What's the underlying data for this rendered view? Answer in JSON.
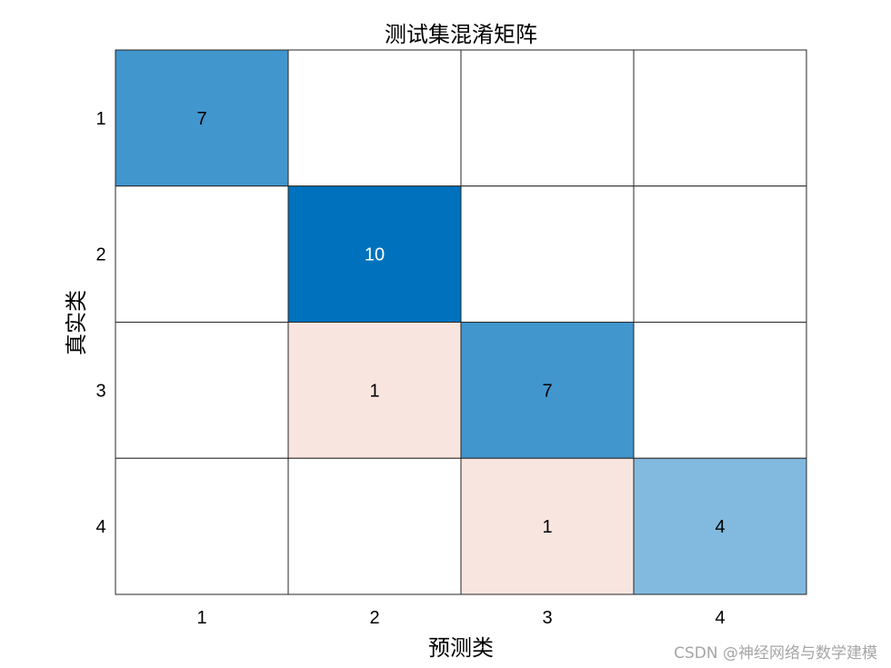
{
  "chart_data": {
    "type": "heatmap",
    "title": "测试集混淆矩阵",
    "xlabel": "预测类",
    "ylabel": "真实类",
    "x_categories": [
      "1",
      "2",
      "3",
      "4"
    ],
    "y_categories": [
      "1",
      "2",
      "3",
      "4"
    ],
    "matrix": [
      [
        7,
        0,
        0,
        0
      ],
      [
        0,
        10,
        0,
        0
      ],
      [
        0,
        1,
        7,
        0
      ],
      [
        0,
        0,
        1,
        4
      ]
    ],
    "colors": {
      "diagonal_max": "#0072bd",
      "diagonal_min": "#ffffff",
      "off_diagonal": "#f9e5df",
      "grid": "#262626",
      "text_dark": "#000000",
      "text_light": "#ffffff"
    },
    "grid": true,
    "legend": "none"
  },
  "watermark": "CSDN @神经网络与数学建模"
}
